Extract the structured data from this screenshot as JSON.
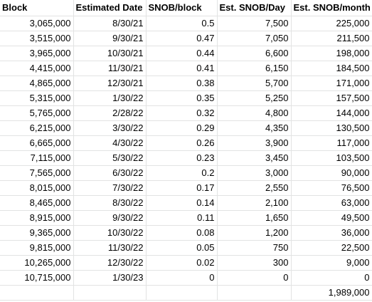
{
  "sheet": {
    "headers": [
      "Block",
      "Estimated Date",
      "SNOB/block",
      "Est. SNOB/Day",
      "Est. SNOB/month"
    ],
    "rows": [
      [
        "3,065,000",
        "8/30/21",
        "0.5",
        "7,500",
        "225,000"
      ],
      [
        "3,515,000",
        "9/30/21",
        "0.47",
        "7,050",
        "211,500"
      ],
      [
        "3,965,000",
        "10/30/21",
        "0.44",
        "6,600",
        "198,000"
      ],
      [
        "4,415,000",
        "11/30/21",
        "0.41",
        "6,150",
        "184,500"
      ],
      [
        "4,865,000",
        "12/30/21",
        "0.38",
        "5,700",
        "171,000"
      ],
      [
        "5,315,000",
        "1/30/22",
        "0.35",
        "5,250",
        "157,500"
      ],
      [
        "5,765,000",
        "2/28/22",
        "0.32",
        "4,800",
        "144,000"
      ],
      [
        "6,215,000",
        "3/30/22",
        "0.29",
        "4,350",
        "130,500"
      ],
      [
        "6,665,000",
        "4/30/22",
        "0.26",
        "3,900",
        "117,000"
      ],
      [
        "7,115,000",
        "5/30/22",
        "0.23",
        "3,450",
        "103,500"
      ],
      [
        "7,565,000",
        "6/30/22",
        "0.2",
        "3,000",
        "90,000"
      ],
      [
        "8,015,000",
        "7/30/22",
        "0.17",
        "2,550",
        "76,500"
      ],
      [
        "8,465,000",
        "8/30/22",
        "0.14",
        "2,100",
        "63,000"
      ],
      [
        "8,915,000",
        "9/30/22",
        "0.11",
        "1,650",
        "49,500"
      ],
      [
        "9,365,000",
        "10/30/22",
        "0.08",
        "1,200",
        "36,000"
      ],
      [
        "9,815,000",
        "11/30/22",
        "0.05",
        "750",
        "22,500"
      ],
      [
        "10,265,000",
        "12/30/22",
        "0.02",
        "300",
        "9,000"
      ],
      [
        "10,715,000",
        "1/30/23",
        "0",
        "0",
        "0"
      ],
      [
        "",
        "",
        "",
        "",
        "1,989,000"
      ]
    ]
  }
}
